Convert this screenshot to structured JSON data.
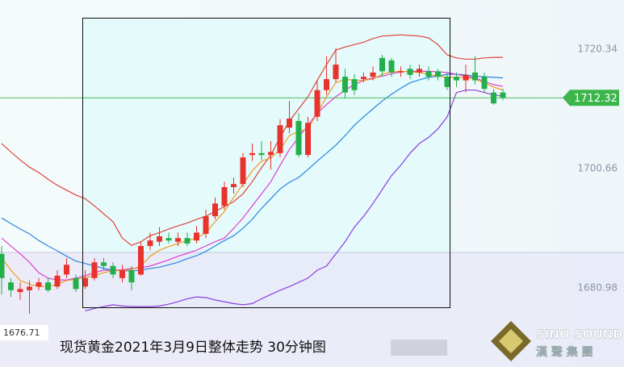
{
  "chart_data": {
    "type": "candlestick",
    "caption": "现货黄金2021年3月9日整体走势  30分钟图",
    "watermark": {
      "en": "SINO SOUND",
      "zh": "漢 聲 集 團"
    },
    "ylim": [
      1671.27,
      1728.45
    ],
    "yticks": [
      1720.34,
      1700.66,
      1680.98
    ],
    "grid": false,
    "up_color": "#e8322c",
    "down_color": "#23b04a",
    "last_price": 1712.32,
    "last_price_color": "#3cb54a",
    "open": [
      1686.6,
      1681.9,
      1680.3,
      1680.6,
      1681.2,
      1681.9,
      1681.2,
      1683.2,
      1682.6,
      1681.2,
      1682.6,
      1685.2,
      1684.6,
      1682.6,
      1683.9,
      1683.2,
      1687.9,
      1688.6,
      1689.2,
      1688.6,
      1689.2,
      1688.8,
      1689.9,
      1692.8,
      1694.5,
      1697.6,
      1698.1,
      1702.9,
      1703.2,
      1702.9,
      1703.2,
      1707.4,
      1708.5,
      1702.9,
      1709.2,
      1713.6,
      1715.4,
      1715.8,
      1715.4,
      1715.4,
      1715.8,
      1718.9,
      1718.5,
      1716.5,
      1717.1,
      1716.5,
      1716.7,
      1716.7,
      1715.8,
      1715.8,
      1715.2,
      1716.5,
      1715.8,
      1713.2,
      1713.2
    ],
    "high": [
      1687.9,
      1682.6,
      1681.9,
      1682.2,
      1682.6,
      1682.7,
      1683.9,
      1685.9,
      1683.2,
      1683.9,
      1685.9,
      1685.9,
      1685.2,
      1684.8,
      1684.6,
      1688.6,
      1690.1,
      1691.0,
      1690.1,
      1690.1,
      1690.1,
      1691.2,
      1693.9,
      1695.9,
      1698.5,
      1699.2,
      1703.2,
      1704.8,
      1705.2,
      1705.2,
      1708.8,
      1711.8,
      1709.8,
      1709.2,
      1715.2,
      1719.2,
      1720.5,
      1717.1,
      1716.2,
      1716.5,
      1717.5,
      1719.4,
      1718.9,
      1717.5,
      1717.8,
      1717.8,
      1717.5,
      1717.1,
      1716.5,
      1716.5,
      1717.8,
      1719.2,
      1716.5,
      1713.8,
      1713.8
    ],
    "low": [
      1679.9,
      1679.5,
      1679.0,
      1676.71,
      1680.6,
      1680.3,
      1680.8,
      1682.6,
      1680.3,
      1680.8,
      1682.2,
      1683.9,
      1682.6,
      1681.9,
      1680.6,
      1683.0,
      1687.2,
      1687.9,
      1688.3,
      1687.9,
      1687.9,
      1688.3,
      1689.2,
      1692.3,
      1693.9,
      1696.5,
      1697.6,
      1701.9,
      1702.1,
      1700.5,
      1702.5,
      1706.5,
      1702.5,
      1702.5,
      1708.5,
      1712.8,
      1714.9,
      1712.2,
      1712.8,
      1714.9,
      1715.2,
      1715.8,
      1715.8,
      1715.8,
      1715.4,
      1715.8,
      1715.2,
      1715.2,
      1713.6,
      1714.1,
      1713.2,
      1714.5,
      1713.2,
      1711.2,
      1711.9
    ],
    "close": [
      1682.6,
      1680.6,
      1680.8,
      1681.2,
      1681.9,
      1680.6,
      1683.0,
      1684.8,
      1680.8,
      1682.6,
      1685.2,
      1684.6,
      1683.2,
      1683.9,
      1681.9,
      1687.9,
      1688.8,
      1689.5,
      1688.8,
      1689.2,
      1688.3,
      1690.1,
      1692.8,
      1694.9,
      1697.6,
      1698.1,
      1702.5,
      1703.2,
      1702.9,
      1703.4,
      1707.8,
      1708.9,
      1702.9,
      1708.2,
      1713.6,
      1715.4,
      1717.8,
      1713.2,
      1713.6,
      1715.8,
      1716.5,
      1716.7,
      1716.5,
      1716.7,
      1716.1,
      1717.1,
      1715.8,
      1715.8,
      1714.1,
      1715.2,
      1716.1,
      1715.2,
      1713.8,
      1711.4,
      1712.32
    ],
    "lines": [
      {
        "color": "#e0453a",
        "values": [
          1704.8,
          1703.4,
          1702.1,
          1700.9,
          1700.0,
          1698.9,
          1697.9,
          1697.1,
          1696.3,
          1695.7,
          1694.5,
          1693.2,
          1691.9,
          1689.2,
          1688.0,
          1688.6,
          1689.6,
          1690.1,
          1690.7,
          1691.2,
          1691.7,
          1692.3,
          1692.8,
          1693.6,
          1694.4,
          1695.2,
          1696.5,
          1698.5,
          1700.8,
          1702.9,
          1705.8,
          1708.5,
          1710.5,
          1712.5,
          1715.2,
          1717.8,
          1720.2,
          1720.7,
          1721.1,
          1721.5,
          1722.1,
          1722.5,
          1722.6,
          1722.7,
          1722.6,
          1722.5,
          1722.2,
          1721.1,
          1719.4,
          1718.9,
          1718.7,
          1718.7,
          1718.9,
          1719.0,
          1719.0
        ]
      },
      {
        "color": "#8b3fe0",
        "values": [
          null,
          null,
          null,
          null,
          null,
          null,
          null,
          null,
          null,
          1677.2,
          1677.6,
          1677.9,
          1678.2,
          1678.0,
          1677.9,
          1677.9,
          1677.9,
          1678.0,
          1678.3,
          1678.7,
          1679.2,
          1679.5,
          1679.4,
          1679.0,
          1678.7,
          1678.4,
          1678.2,
          1678.4,
          1679.2,
          1679.9,
          1680.6,
          1681.2,
          1681.9,
          1682.6,
          1683.9,
          1684.6,
          1686.6,
          1688.6,
          1691.0,
          1692.8,
          1694.9,
          1697.2,
          1699.5,
          1701.2,
          1703.2,
          1704.8,
          1705.8,
          1707.2,
          1709.2,
          1713.2,
          1713.6,
          1713.6,
          1713.2,
          1712.8,
          1712.6
        ]
      },
      {
        "color": "#2a86e0",
        "values": [
          1692.5,
          1691.6,
          1690.7,
          1689.9,
          1688.8,
          1687.9,
          1687.1,
          1686.2,
          1685.4,
          1685.0,
          1684.6,
          1684.2,
          1683.9,
          1683.8,
          1683.8,
          1683.9,
          1684.2,
          1684.4,
          1684.8,
          1685.2,
          1685.8,
          1686.3,
          1687.0,
          1687.9,
          1688.8,
          1689.6,
          1690.8,
          1692.3,
          1694.1,
          1695.7,
          1697.3,
          1698.4,
          1699.2,
          1700.5,
          1701.9,
          1703.2,
          1704.5,
          1706.1,
          1707.8,
          1709.2,
          1710.5,
          1711.8,
          1712.9,
          1713.9,
          1714.8,
          1715.3,
          1715.7,
          1715.9,
          1716.2,
          1716.2,
          1716.1,
          1715.9,
          1715.8,
          1715.7,
          1715.6
        ]
      },
      {
        "color": "#e23fd0",
        "values": [
          1689.2,
          1687.9,
          1686.6,
          1685.2,
          1683.5,
          1682.6,
          1682.3,
          1682.3,
          1682.6,
          1683.0,
          1683.5,
          1683.9,
          1683.9,
          1684.0,
          1684.2,
          1684.3,
          1684.6,
          1685.1,
          1685.6,
          1686.2,
          1686.7,
          1687.2,
          1687.9,
          1688.6,
          1689.2,
          1690.8,
          1692.5,
          1694.5,
          1696.5,
          1698.5,
          1701.2,
          1703.8,
          1705.8,
          1707.8,
          1709.8,
          1711.2,
          1712.5,
          1713.6,
          1714.5,
          1715.2,
          1715.6,
          1715.9,
          1716.3,
          1716.6,
          1716.7,
          1716.7,
          1716.7,
          1716.6,
          1716.5,
          1716.2,
          1715.9,
          1715.6,
          1715.0,
          1714.5,
          1714.2
        ]
      },
      {
        "color": "#f39a1e",
        "values": [
          1685.9,
          1683.9,
          1682.2,
          1681.6,
          1681.2,
          1681.2,
          1681.6,
          1682.2,
          1682.4,
          1682.7,
          1683.0,
          1683.5,
          1683.8,
          1683.9,
          1684.0,
          1684.6,
          1686.2,
          1687.2,
          1687.8,
          1688.3,
          1688.8,
          1689.2,
          1690.1,
          1691.9,
          1693.6,
          1695.9,
          1698.1,
          1700.3,
          1701.9,
          1702.4,
          1703.8,
          1706.1,
          1706.8,
          1707.2,
          1709.8,
          1712.5,
          1714.8,
          1715.4,
          1715.2,
          1715.2,
          1715.4,
          1716.2,
          1716.6,
          1716.7,
          1716.6,
          1716.5,
          1716.2,
          1715.9,
          1715.7,
          1715.7,
          1715.7,
          1715.4,
          1714.8,
          1714.1,
          1713.6
        ]
      }
    ]
  }
}
